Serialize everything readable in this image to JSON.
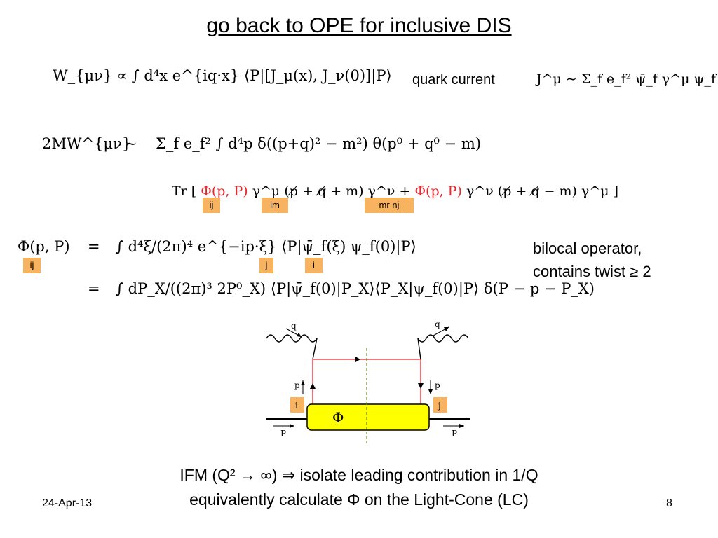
{
  "title": "go back to OPE for inclusive DIS",
  "equations": {
    "w_mu_nu": "W_{μν} ∝ ∫ d⁴x e^{iq·x} ⟨P|[J_μ(x), J_ν(0)]|P⟩",
    "quark_current_label": "quark current",
    "current_def": "J^μ ∼ Σ_f e_f² ψ̄_f γ^μ ψ_f",
    "two_m_w_lhs": "2MW^{μν}",
    "two_m_w_sim": "∼",
    "two_m_w_rhs": "Σ_f e_f² ∫ d⁴p δ((p+q)² − m²) θ(p⁰ + q⁰ − m)",
    "trace_prefix": "Tr [",
    "trace_phi": "Φ(p, P)",
    "trace_mid": "γ^μ (p̸ + q̸ + m) γ^ν +",
    "trace_phibar": "Φ̄(p, P)",
    "trace_end": "γ^ν (p̸ + q̸ − m) γ^μ ]",
    "phi_lhs": "Φ(p, P)",
    "eq_sign": "=",
    "phi_rhs1": "∫ d⁴ξ/(2π)⁴ e^{−ip·ξ} ⟨P|ψ̄_f(ξ) ψ_f(0)|P⟩",
    "phi_rhs2": "∫ dP_X/((2π)³ 2P⁰_X) ⟨P|ψ̄_f(0)|P_X⟩⟨P_X|ψ_f(0)|P⟩ δ(P − p − P_X)"
  },
  "index_tags": {
    "ij_trace": "ij",
    "im_trace": "im",
    "mr_nj_trace": "mr  nj",
    "ij_phi": "ij",
    "j_phi": "j",
    "i_phi": "i"
  },
  "side_note": {
    "line1": "bilocal operator,",
    "line2": "contains twist ≥ 2"
  },
  "diagram": {
    "q_left": "q",
    "q_right": "q",
    "p_left": "p",
    "p_right": "p",
    "i_tag": "i",
    "j_tag": "j",
    "blob": "Φ",
    "P_left": "P",
    "P_right": "P",
    "blob_color": "#ffff00",
    "line_color": "#e8262a",
    "cut_color": "#6b8e23"
  },
  "bottom": {
    "line1": "IFM (Q² → ∞) ⇒ isolate leading contribution in 1/Q",
    "line2": "equivalently calculate Φ on the Light-Cone (LC)"
  },
  "footer": {
    "date": "24-Apr-13",
    "page": "8"
  }
}
